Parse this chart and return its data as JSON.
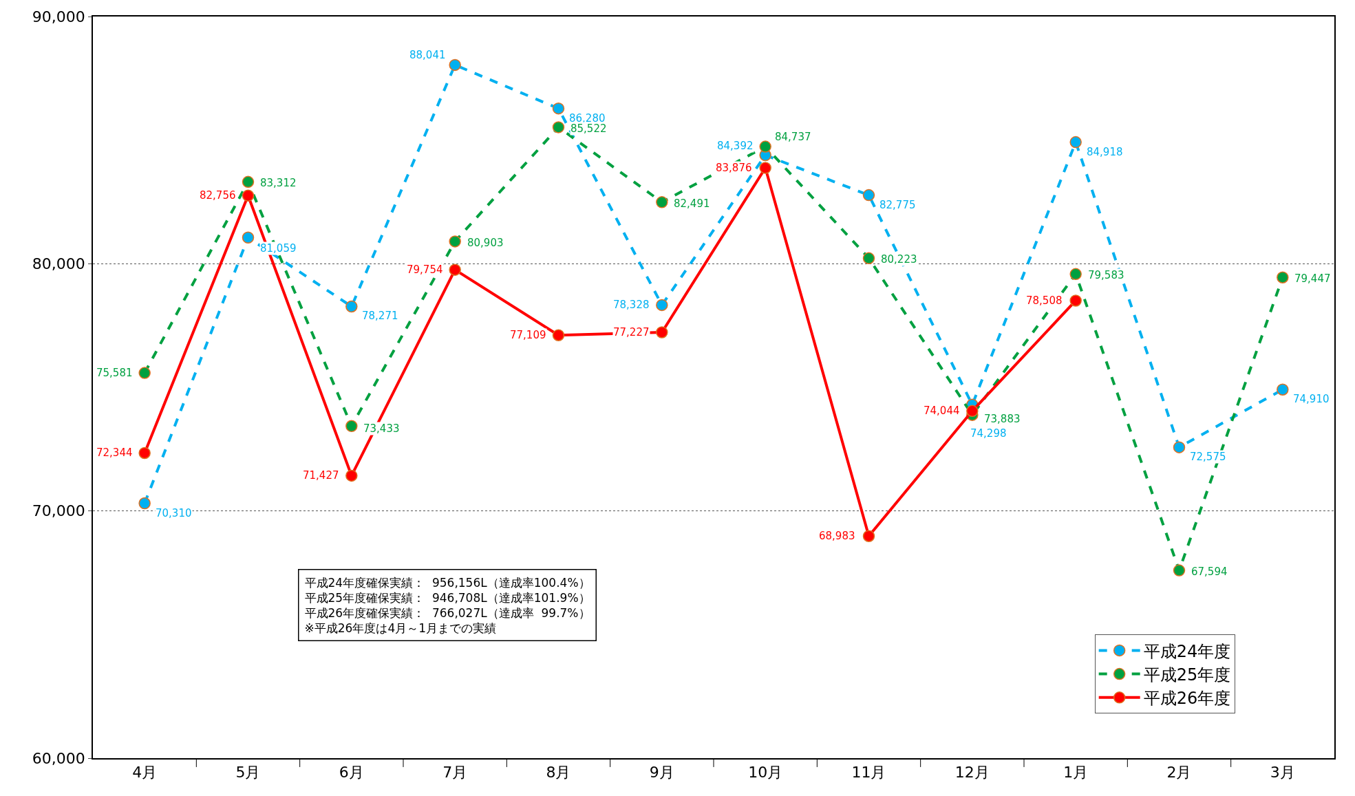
{
  "chart_data": {
    "type": "line",
    "categories": [
      "4月",
      "5月",
      "6月",
      "7月",
      "8月",
      "9月",
      "10月",
      "11月",
      "12月",
      "1月",
      "2月",
      "3月"
    ],
    "series": [
      {
        "name": "平成24年度",
        "color": "#00b0f0",
        "line_style": "dashed",
        "values": [
          70310,
          81059,
          78271,
          88041,
          86280,
          78328,
          84392,
          82775,
          74298,
          84918,
          72575,
          74910
        ],
        "value_labels": [
          "70,310",
          "81,059",
          "78,271",
          "88,041",
          "86,280",
          "78,328",
          "84,392",
          "82,775",
          "74,298",
          "84,918",
          "72,575",
          "74,910"
        ]
      },
      {
        "name": "平成25年度",
        "color": "#00a040",
        "line_style": "dashed",
        "values": [
          75581,
          83312,
          73433,
          80903,
          85522,
          82491,
          84737,
          80223,
          73883,
          79583,
          67594,
          79447
        ],
        "value_labels": [
          "75,581",
          "83,312",
          "73,433",
          "80,903",
          "85,522",
          "82,491",
          "84,737",
          "80,223",
          "73,883",
          "79,583",
          "67,594",
          "79,447"
        ]
      },
      {
        "name": "平成26年度",
        "color": "#ff0000",
        "line_style": "solid",
        "values": [
          72344,
          82756,
          71427,
          79754,
          77109,
          77227,
          83876,
          68983,
          74044,
          78508,
          null,
          null
        ],
        "value_labels": [
          "72,344",
          "82,756",
          "71,427",
          "79,754",
          "77,109",
          "77,227",
          "83,876",
          "68,983",
          "74,044",
          "78,508",
          null,
          null
        ]
      }
    ],
    "ylim": [
      60000,
      90000
    ],
    "yticks": [
      {
        "value": 60000,
        "label": "60,000"
      },
      {
        "value": 70000,
        "label": "70,000"
      },
      {
        "value": 80000,
        "label": "80,000"
      },
      {
        "value": 90000,
        "label": "90,000"
      }
    ],
    "grid": "y",
    "legend": "bottom right",
    "marker": "circle",
    "annotations": [
      "平成24年度確保実績：  956,156L（達成率100.4%）",
      "平成25年度確保実績：  946,708L（達成率101.9%）",
      "平成26年度確保実績：  766,027L（達成率  99.7%）",
      "※平成26年度は4月～1月までの実績"
    ]
  }
}
